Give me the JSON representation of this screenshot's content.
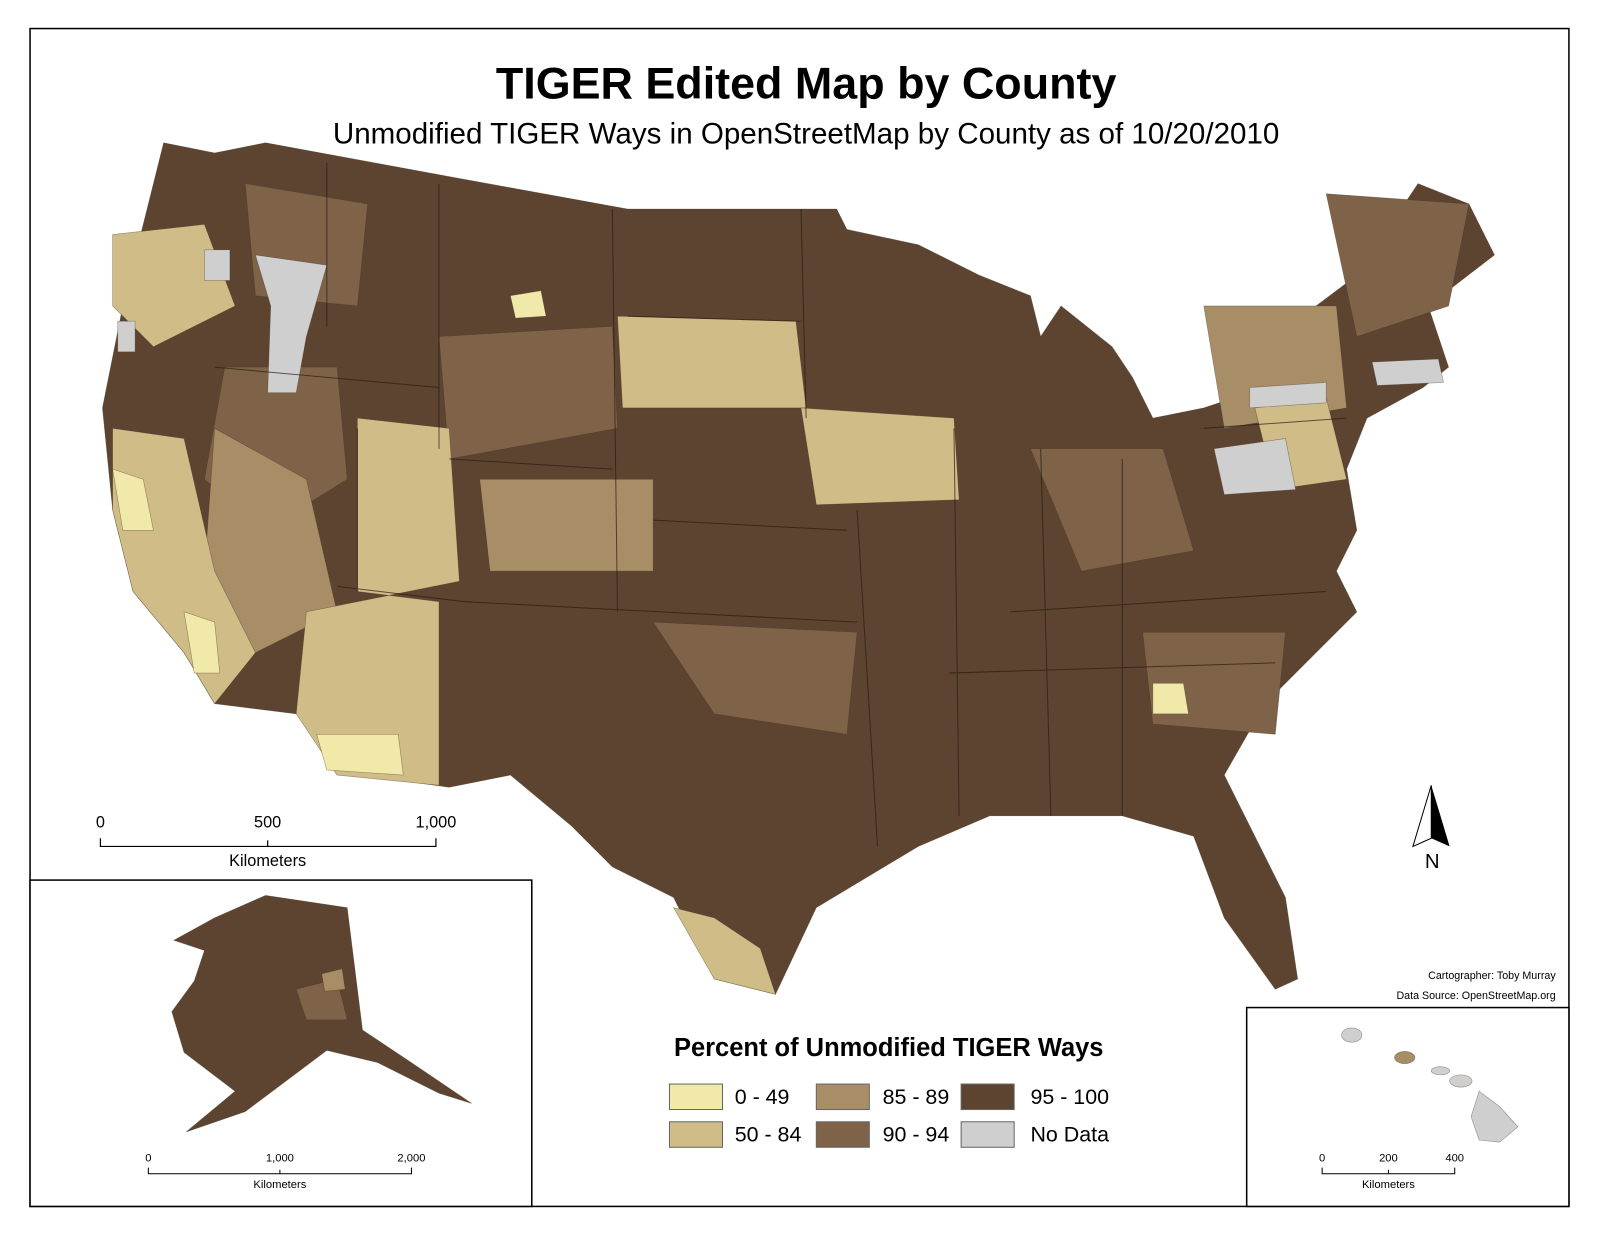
{
  "title": "TIGER Edited Map by County",
  "subtitle": "Unmodified TIGER Ways in OpenStreetMap by County as of 10/20/2010",
  "scale_bars": {
    "conus": {
      "ticks": [
        "0",
        "500",
        "1,000"
      ],
      "unit": "Kilometers"
    },
    "alaska": {
      "ticks": [
        "0",
        "1,000",
        "2,000"
      ],
      "unit": "Kilometers"
    },
    "hawaii": {
      "ticks": [
        "0",
        "200",
        "400"
      ],
      "unit": "Kilometers"
    }
  },
  "north_arrow": "N",
  "credits": [
    "Cartographer: Toby Murray",
    "Data Source: OpenStreetMap.org"
  ],
  "legend": {
    "title": "Percent of Unmodified TIGER Ways",
    "items": [
      {
        "label": "0 - 49",
        "color": "#f1e9a9"
      },
      {
        "label": "50 - 84",
        "color": "#cfbc87"
      },
      {
        "label": "85 - 89",
        "color": "#a88e66"
      },
      {
        "label": "90 - 94",
        "color": "#7f6349"
      },
      {
        "label": "95 - 100",
        "color": "#5d4431"
      },
      {
        "label": "No Data",
        "color": "#cfcfcf"
      }
    ]
  }
}
